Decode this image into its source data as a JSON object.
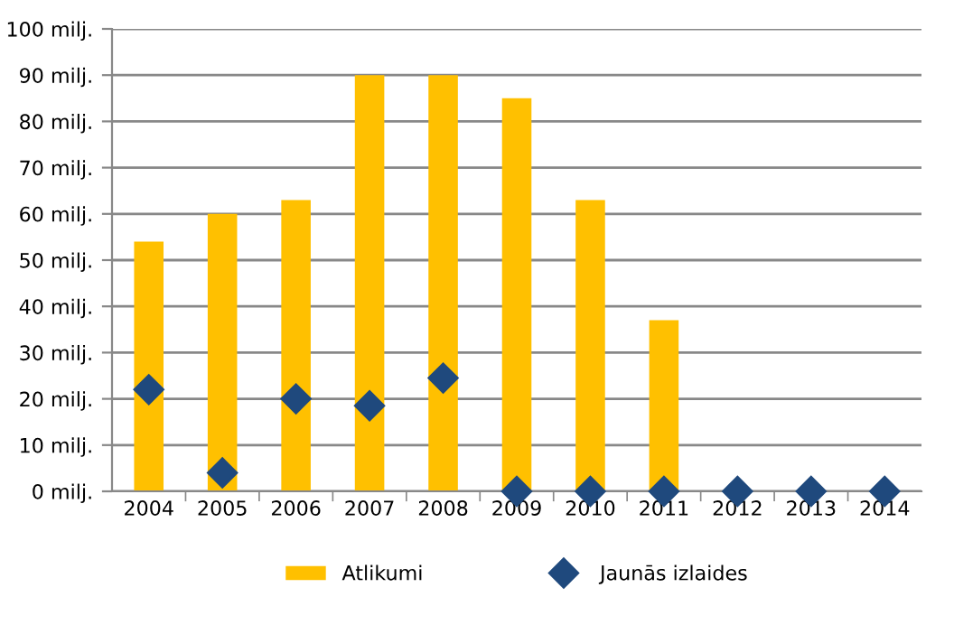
{
  "chart_data": {
    "type": "bar",
    "categories": [
      "2004",
      "2005",
      "2006",
      "2007",
      "2008",
      "2009",
      "2010",
      "2011",
      "2012",
      "2013",
      "2014"
    ],
    "series": [
      {
        "name": "Atlikumi",
        "color": "#ffc000",
        "values": [
          54,
          60,
          63,
          90,
          90,
          85,
          63,
          37,
          0,
          0,
          0
        ]
      },
      {
        "name": "Jaunās izlaides",
        "type": "scatter",
        "marker": "diamond",
        "color": "#1f497d",
        "values": [
          22,
          4,
          20,
          18.5,
          24.5,
          0,
          0,
          0,
          0,
          0,
          0
        ]
      }
    ],
    "ylim": [
      0,
      100
    ],
    "yticks": [
      {
        "value": 0,
        "label": "0 milj."
      },
      {
        "value": 10,
        "label": "10 milj."
      },
      {
        "value": 20,
        "label": "20 milj."
      },
      {
        "value": 30,
        "label": "30 milj."
      },
      {
        "value": 40,
        "label": "40 milj."
      },
      {
        "value": 50,
        "label": "50 milj."
      },
      {
        "value": 60,
        "label": "60 milj."
      },
      {
        "value": 70,
        "label": "70 milj."
      },
      {
        "value": 80,
        "label": "80 milj."
      },
      {
        "value": 90,
        "label": "90 milj."
      },
      {
        "value": 100,
        "label": "100 milj."
      }
    ],
    "grid": "y",
    "legend": "bottom"
  }
}
